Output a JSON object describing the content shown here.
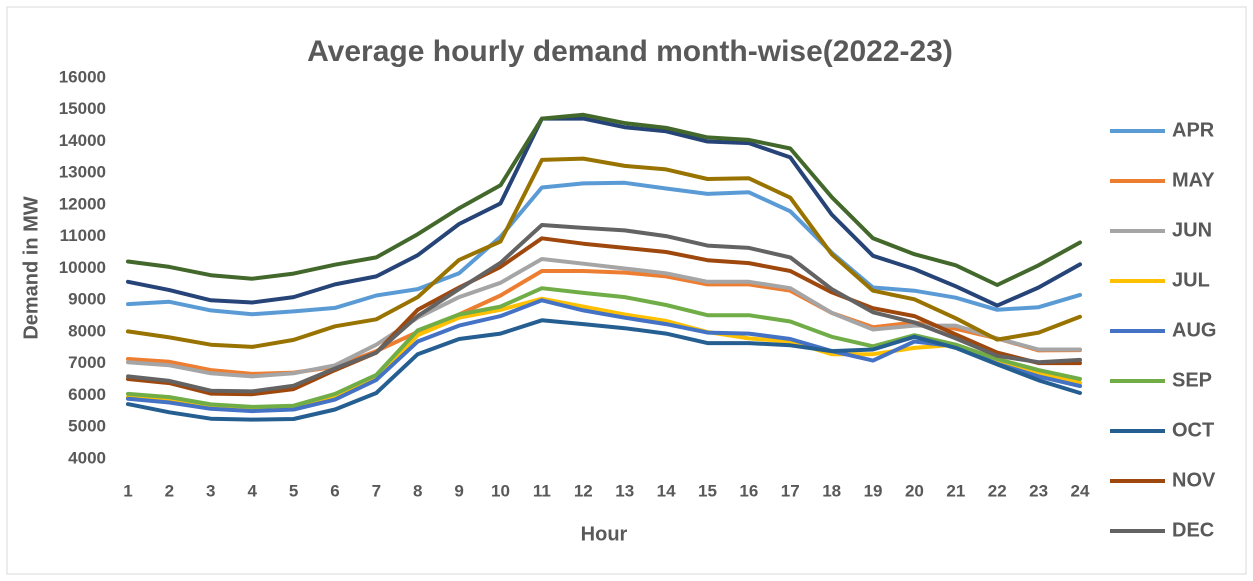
{
  "chart_data": {
    "type": "line",
    "title": "Average hourly demand month-wise(2022-23)",
    "x_label": "Hour",
    "y_label": "Demand in MW",
    "x": [
      1,
      2,
      3,
      4,
      5,
      6,
      7,
      8,
      9,
      10,
      11,
      12,
      13,
      14,
      15,
      16,
      17,
      18,
      19,
      20,
      21,
      22,
      23,
      24
    ],
    "xlim": [
      1,
      24
    ],
    "xticks": [
      1,
      2,
      3,
      4,
      5,
      6,
      7,
      8,
      9,
      10,
      11,
      12,
      13,
      14,
      15,
      16,
      17,
      18,
      19,
      20,
      21,
      22,
      23,
      24
    ],
    "ylim": [
      4000,
      16000
    ],
    "yticks": [
      4000,
      5000,
      6000,
      7000,
      8000,
      9000,
      10000,
      11000,
      12000,
      13000,
      14000,
      15000,
      16000
    ],
    "grid": false,
    "legend": "right",
    "series": [
      {
        "name": "APR",
        "color": "#5b9bd5",
        "values": [
          8880,
          8950,
          8680,
          8560,
          8650,
          8760,
          9150,
          9350,
          9850,
          11000,
          12550,
          12680,
          12700,
          12520,
          12350,
          12400,
          11800,
          10500,
          9400,
          9300,
          9080,
          8700,
          8780,
          9170
        ]
      },
      {
        "name": "MAY",
        "color": "#ed7d31",
        "values": [
          7150,
          7060,
          6800,
          6680,
          6720,
          6900,
          7400,
          8000,
          8550,
          9150,
          9920,
          9920,
          9870,
          9750,
          9500,
          9500,
          9300,
          8600,
          8150,
          8300,
          8100,
          7800,
          7420,
          7430
        ]
      },
      {
        "name": "JUN",
        "color": "#a5a5a5",
        "values": [
          7050,
          6950,
          6700,
          6600,
          6700,
          6950,
          7600,
          8450,
          9100,
          9550,
          10300,
          10150,
          10000,
          9850,
          9580,
          9580,
          9380,
          8600,
          8080,
          8200,
          8200,
          7800,
          7450,
          7450
        ]
      },
      {
        "name": "JUL",
        "color": "#ffc000",
        "values": [
          5950,
          5850,
          5650,
          5580,
          5620,
          5950,
          6550,
          7900,
          8450,
          8700,
          9050,
          8800,
          8550,
          8350,
          8000,
          7800,
          7700,
          7300,
          7300,
          7500,
          7600,
          7100,
          6700,
          6400
        ]
      },
      {
        "name": "AUG",
        "color": "#4472c4",
        "values": [
          5900,
          5780,
          5580,
          5510,
          5560,
          5870,
          6490,
          7700,
          8200,
          8500,
          9000,
          8680,
          8450,
          8250,
          7980,
          7950,
          7780,
          7400,
          7100,
          7700,
          7550,
          7000,
          6600,
          6300
        ]
      },
      {
        "name": "SEP",
        "color": "#70ad47",
        "values": [
          6050,
          5950,
          5720,
          5640,
          5680,
          6050,
          6650,
          8050,
          8550,
          8800,
          9380,
          9230,
          9100,
          8850,
          8530,
          8530,
          8330,
          7850,
          7550,
          7900,
          7600,
          7150,
          6800,
          6520
        ]
      },
      {
        "name": "OCT",
        "color": "#255e91",
        "values": [
          5730,
          5470,
          5270,
          5240,
          5260,
          5560,
          6080,
          7300,
          7780,
          7950,
          8370,
          8250,
          8120,
          7950,
          7650,
          7650,
          7580,
          7400,
          7450,
          7850,
          7500,
          6980,
          6480,
          6080
        ]
      },
      {
        "name": "NOV",
        "color": "#9e480e",
        "values": [
          6520,
          6390,
          6060,
          6040,
          6200,
          6800,
          7350,
          8700,
          9400,
          10050,
          10950,
          10780,
          10650,
          10520,
          10260,
          10170,
          9920,
          9250,
          8750,
          8500,
          7920,
          7350,
          7020,
          7020
        ]
      },
      {
        "name": "DEC",
        "color": "#636363",
        "values": [
          6600,
          6460,
          6150,
          6130,
          6310,
          6850,
          7350,
          8500,
          9350,
          10180,
          11370,
          11280,
          11200,
          11020,
          10720,
          10650,
          10350,
          9350,
          8620,
          8300,
          7800,
          7250,
          7050,
          7120
        ]
      },
      {
        "color": "#997300",
        "values": [
          8020,
          7830,
          7600,
          7530,
          7750,
          8180,
          8400,
          9100,
          10270,
          10850,
          13420,
          13460,
          13230,
          13120,
          12820,
          12840,
          12230,
          10450,
          9300,
          9030,
          8430,
          7760,
          7980,
          8480
        ]
      },
      {
        "color": "#264478",
        "values": [
          9580,
          9320,
          9000,
          8930,
          9100,
          9500,
          9750,
          10420,
          11400,
          12050,
          14720,
          14720,
          14450,
          14320,
          14000,
          13950,
          13500,
          11700,
          10400,
          9980,
          9440,
          8830,
          9400,
          10130
        ]
      },
      {
        "color": "#43682b",
        "values": [
          10220,
          10050,
          9790,
          9680,
          9840,
          10120,
          10350,
          11080,
          11900,
          12620,
          14720,
          14840,
          14580,
          14430,
          14130,
          14050,
          13780,
          12250,
          10950,
          10450,
          10100,
          9480,
          10100,
          10820
        ]
      }
    ]
  }
}
